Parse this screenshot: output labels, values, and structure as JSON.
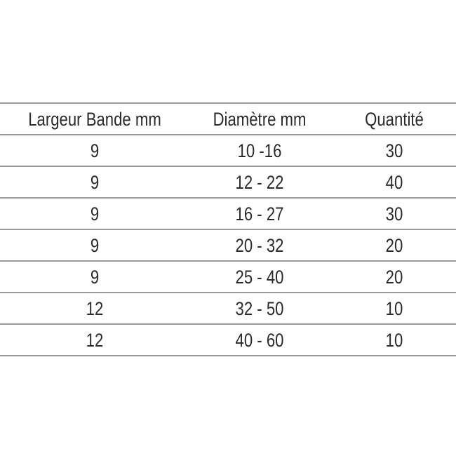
{
  "table": {
    "headers": [
      "Largeur Bande mm",
      "Diamètre mm",
      "Quantité"
    ],
    "rows": [
      [
        "9",
        "10  -16",
        "30"
      ],
      [
        "9",
        "12 - 22",
        "40"
      ],
      [
        "9",
        "16 - 27",
        "30"
      ],
      [
        "9",
        "20 - 32",
        "20"
      ],
      [
        "9",
        "25 - 40",
        "20"
      ],
      [
        "12",
        "32 - 50",
        "10"
      ],
      [
        "12",
        "40 - 60",
        "10"
      ]
    ]
  },
  "colors": {
    "text": "#2a2a2a",
    "rule": "#9a9a9a"
  }
}
